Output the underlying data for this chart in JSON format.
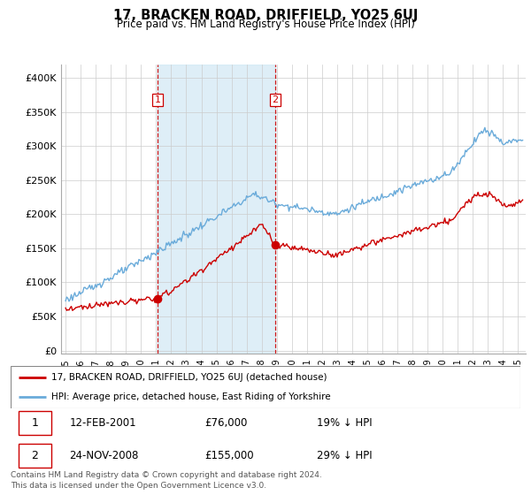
{
  "title": "17, BRACKEN ROAD, DRIFFIELD, YO25 6UJ",
  "subtitle": "Price paid vs. HM Land Registry's House Price Index (HPI)",
  "ylabel_ticks": [
    "£0",
    "£50K",
    "£100K",
    "£150K",
    "£200K",
    "£250K",
    "£300K",
    "£350K",
    "£400K"
  ],
  "ytick_values": [
    0,
    50000,
    100000,
    150000,
    200000,
    250000,
    300000,
    350000,
    400000
  ],
  "ylim": [
    -5000,
    420000
  ],
  "xlim_start": 1994.7,
  "xlim_end": 2025.5,
  "hpi_color": "#6aabda",
  "hpi_fill_color": "#d0e8f5",
  "price_color": "#cc0000",
  "vline_color": "#cc0000",
  "marker1_x": 2001.1,
  "marker1_y": 76000,
  "marker2_x": 2008.9,
  "marker2_y": 155000,
  "vline1_x": 2001.1,
  "vline2_x": 2008.9,
  "legend_line1": "17, BRACKEN ROAD, DRIFFIELD, YO25 6UJ (detached house)",
  "legend_line2": "HPI: Average price, detached house, East Riding of Yorkshire",
  "table_row1": [
    "1",
    "12-FEB-2001",
    "£76,000",
    "19% ↓ HPI"
  ],
  "table_row2": [
    "2",
    "24-NOV-2008",
    "£155,000",
    "29% ↓ HPI"
  ],
  "footer": "Contains HM Land Registry data © Crown copyright and database right 2024.\nThis data is licensed under the Open Government Licence v3.0.",
  "background_color": "#ffffff",
  "grid_color": "#cccccc"
}
